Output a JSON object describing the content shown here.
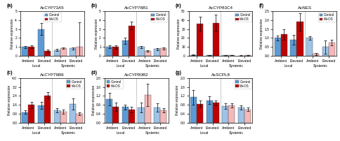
{
  "chart_data": [
    {
      "type": "bar",
      "title": "AcCYP73A5",
      "annotations": [
        "(a)"
      ],
      "ylabel": "Relative expression",
      "categories": [
        "Ambient",
        "Elevated",
        "Ambient",
        "Elevated"
      ],
      "category_groups": [
        "Local",
        "Local",
        "Systemic",
        "Systemic"
      ],
      "series": [
        {
          "name": "Control",
          "color": "#5b9bd5",
          "colors": [
            "#5b9bd5",
            "#5b9bd5",
            "#9dc3e6",
            "#9dc3e6"
          ],
          "values": [
            1.0,
            3.0,
            0.65,
            0.85
          ],
          "errors": [
            0.1,
            0.65,
            0.1,
            0.12
          ]
        },
        {
          "name": "W+OS",
          "color": "#c00000",
          "colors": [
            "#c00000",
            "#c00000",
            "#f4b8b8",
            "#f4b8b8"
          ],
          "values": [
            1.0,
            0.55,
            0.85,
            1.05
          ],
          "errors": [
            0.15,
            0.15,
            0.1,
            2.7
          ]
        }
      ],
      "ylim": [
        0,
        5
      ],
      "yticks": [
        0,
        1,
        2,
        3,
        4,
        5
      ],
      "legend": "upper center"
    },
    {
      "type": "bar",
      "title": "AcCYP76B1",
      "annotations": [
        "(b)"
      ],
      "ylabel": "Relative expression",
      "categories": [
        "Ambient",
        "Elevated",
        "Ambient",
        "Elevated"
      ],
      "category_groups": [
        "Local",
        "Local",
        "Systemic",
        "Systemic"
      ],
      "series": [
        {
          "name": "Control",
          "color": "#5b9bd5",
          "colors": [
            "#5b9bd5",
            "#5b9bd5",
            "#9dc3e6",
            "#9dc3e6"
          ],
          "values": [
            1.0,
            1.7,
            1.0,
            0.75
          ],
          "errors": [
            0.15,
            0.35,
            0.1,
            0.15
          ]
        },
        {
          "name": "W+OS",
          "color": "#c00000",
          "colors": [
            "#c00000",
            "#c00000",
            "#f4b8b8",
            "#f4b8b8"
          ],
          "values": [
            1.0,
            3.4,
            0.55,
            0.85
          ],
          "errors": [
            0.2,
            0.4,
            0.1,
            0.12
          ]
        }
      ],
      "ylim": [
        0,
        5
      ],
      "yticks": [
        0,
        1,
        2,
        3,
        4,
        5
      ],
      "legend": "upper right"
    },
    {
      "type": "bar",
      "title": "AcCYP76B6",
      "annotations": [
        "(c)"
      ],
      "ylabel": "Relative expression",
      "categories": [
        "Ambient",
        "Elevated",
        "Ambient",
        "Elevated"
      ],
      "category_groups": [
        "Local",
        "Local",
        "Systemic",
        "Systemic"
      ],
      "series": [
        {
          "name": "Control",
          "color": "#5b9bd5",
          "colors": [
            "#5b9bd5",
            "#5b9bd5",
            "#9dc3e6",
            "#9dc3e6"
          ],
          "values": [
            0.95,
            1.55,
            1.1,
            1.65
          ],
          "errors": [
            0.15,
            0.3,
            0.2,
            0.5
          ]
        },
        {
          "name": "W+OS",
          "color": "#c00000",
          "colors": [
            "#c00000",
            "#c00000",
            "#f4b8b8",
            "#f4b8b8"
          ],
          "values": [
            1.6,
            2.45,
            1.0,
            0.8
          ],
          "errors": [
            0.28,
            0.3,
            0.18,
            0.12
          ]
        }
      ],
      "ylim": [
        0,
        4
      ],
      "yticks": [
        {
          "value": 0,
          "label": "0.0"
        },
        0.8,
        1.6,
        2.4,
        3.2,
        4.0
      ],
      "legend": "upper right"
    },
    {
      "type": "bar",
      "title": "AcCYP80B2",
      "annotations": [
        "(d)"
      ],
      "ylabel": "Relative expression",
      "categories": [
        "Ambient",
        "Elevated",
        "Ambient",
        "Elevated"
      ],
      "category_groups": [
        "Local",
        "Local",
        "Systemic",
        "Systemic"
      ],
      "series": [
        {
          "name": "Control",
          "color": "#5b9bd5",
          "colors": [
            "#5b9bd5",
            "#5b9bd5",
            "#9dc3e6",
            "#9dc3e6"
          ],
          "values": [
            1.05,
            0.7,
            0.68,
            0.68
          ],
          "errors": [
            0.28,
            0.12,
            0.22,
            0.18
          ]
        },
        {
          "name": "W+OS",
          "color": "#c00000",
          "colors": [
            "#c00000",
            "#c00000",
            "#f4b8b8",
            "#f4b8b8"
          ],
          "values": [
            0.72,
            0.58,
            1.25,
            0.55
          ],
          "errors": [
            0.18,
            0.12,
            0.5,
            0.1
          ]
        }
      ],
      "ylim": [
        0,
        2
      ],
      "yticks": [
        {
          "value": 0,
          "label": "0.0"
        },
        0.4,
        0.8,
        1.2,
        1.6,
        2.0
      ],
      "legend": "upper left"
    },
    {
      "type": "bar",
      "title": "AcCYP83C4",
      "annotations": [
        "(e)"
      ],
      "ylabel": "Relative expression",
      "categories": [
        "Ambient",
        "Elevated",
        "Ambient",
        "Elevated"
      ],
      "category_groups": [
        "Local",
        "Local",
        "Systemic",
        "Systemic"
      ],
      "series": [
        {
          "name": "Control",
          "color": "#5b9bd5",
          "colors": [
            "#5b9bd5",
            "#5b9bd5",
            "#9dc3e6",
            "#9dc3e6"
          ],
          "values": [
            1.0,
            0.5,
            0.5,
            0.3
          ],
          "errors": [
            0.2,
            0.2,
            0.15,
            0.1
          ]
        },
        {
          "name": "W+OS",
          "color": "#c00000",
          "colors": [
            "#c00000",
            "#c00000",
            "#f4b8b8",
            "#f4b8b8"
          ],
          "values": [
            36.0,
            37.0,
            0.8,
            0.4
          ],
          "errors": [
            8.0,
            9.5,
            0.3,
            0.1
          ]
        }
      ],
      "ylim": [
        0,
        50
      ],
      "yticks": [
        0,
        10,
        20,
        30,
        40,
        50
      ],
      "legend": "upper right"
    },
    {
      "type": "bar",
      "title": "AcNES",
      "annotations": [
        "(f)"
      ],
      "ylabel": "Relative expression",
      "categories": [
        "Ambient",
        "Elevated",
        "Ambient",
        "Elevated"
      ],
      "category_groups": [
        "Local",
        "Local",
        "Systemic",
        "Systemic"
      ],
      "series": [
        {
          "name": "Control",
          "color": "#5b9bd5",
          "colors": [
            "#5b9bd5",
            "#5b9bd5",
            "#9dc3e6",
            "#9dc3e6"
          ],
          "values": [
            1.0,
            0.9,
            1.0,
            0.5
          ],
          "errors": [
            0.15,
            0.28,
            0.1,
            0.38
          ]
        },
        {
          "name": "W+OS",
          "color": "#c00000",
          "colors": [
            "#c00000",
            "#c00000",
            "#f4b8b8",
            "#f4b8b8"
          ],
          "values": [
            1.2,
            1.9,
            0.1,
            0.75
          ],
          "errors": [
            0.3,
            0.5,
            0.05,
            0.15
          ]
        }
      ],
      "ylim": [
        0,
        2.5
      ],
      "yticks": [
        {
          "value": 0,
          "label": "0.0"
        },
        0.5,
        1.0,
        1.5,
        2.0,
        2.5
      ],
      "legend": "upper right"
    },
    {
      "type": "bar",
      "title": "AcSCPL8",
      "annotations": [
        "(g)"
      ],
      "ylabel": "Relative expression",
      "categories": [
        "Ambient",
        "Elevated",
        "Ambient",
        "Elevated"
      ],
      "category_groups": [
        "Local",
        "Local",
        "Systemic",
        "Systemic"
      ],
      "series": [
        {
          "name": "Control",
          "color": "#5b9bd5",
          "colors": [
            "#5b9bd5",
            "#5b9bd5",
            "#9dc3e6",
            "#9dc3e6"
          ],
          "values": [
            1.15,
            1.0,
            0.75,
            0.68
          ],
          "errors": [
            0.33,
            0.17,
            0.12,
            0.1
          ]
        },
        {
          "name": "W+OS",
          "color": "#c00000",
          "colors": [
            "#c00000",
            "#c00000",
            "#f4b8b8",
            "#f4b8b8"
          ],
          "values": [
            0.85,
            0.9,
            0.78,
            0.6
          ],
          "errors": [
            0.14,
            0.11,
            0.1,
            0.07
          ]
        }
      ],
      "ylim": [
        0,
        2
      ],
      "yticks": [
        {
          "value": 0,
          "label": "0.0"
        },
        0.4,
        0.8,
        1.2,
        1.6,
        2.0
      ],
      "legend": "upper right"
    }
  ]
}
